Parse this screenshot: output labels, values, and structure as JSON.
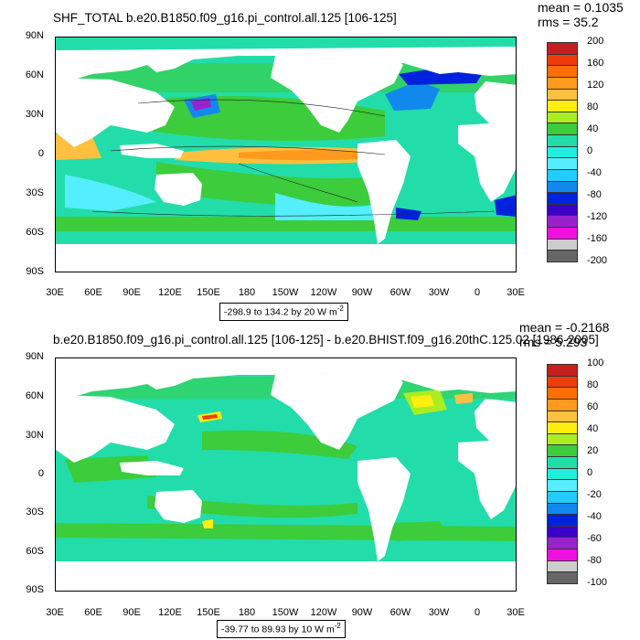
{
  "panels": [
    {
      "title": "SHF_TOTAL b.e20.B1850.f09_g16.pi_control.all.125 [106-125]",
      "mean": "mean = 0.1035",
      "rms": "rms = 35.2",
      "range_label": "-298.9 to 134.2 by 20  W m",
      "units_exp": "-2",
      "colorbar_labels": [
        "200",
        "160",
        "120",
        "80",
        "40",
        "0",
        "-40",
        "-80",
        "-120",
        "-160",
        "-200"
      ],
      "colorbar_colors": [
        "#c81e1e",
        "#f03c0a",
        "#ff6e00",
        "#ff9a1e",
        "#ffc040",
        "#ffee10",
        "#aaee22",
        "#3ccc3c",
        "#22ddaa",
        "#22eedd",
        "#55eeff",
        "#22ccff",
        "#1188ee",
        "#0022dd",
        "#3c00cc",
        "#9922cc",
        "#ee11dd",
        "#cccccc",
        "#666666"
      ]
    },
    {
      "title": "b.e20.B1850.f09_g16.pi_control.all.125 [106-125] - b.e20.BHIST.f09_g16.20thC.125.02 [1986-2005]",
      "mean": "mean = -0.2168",
      "rms": "rms = 5.293",
      "range_label": "-39.77 to 89.93 by 10  W m",
      "units_exp": "-2",
      "colorbar_labels": [
        "100",
        "80",
        "60",
        "40",
        "20",
        "0",
        "-20",
        "-40",
        "-60",
        "-80",
        "-100"
      ],
      "colorbar_colors": [
        "#c81e1e",
        "#f03c0a",
        "#ff6e00",
        "#ff9a1e",
        "#ffc040",
        "#ffee10",
        "#aaee22",
        "#3ccc3c",
        "#22ddaa",
        "#22eedd",
        "#55eeff",
        "#22ccff",
        "#1188ee",
        "#0022dd",
        "#3c00cc",
        "#9922cc",
        "#ee11dd",
        "#cccccc",
        "#666666"
      ]
    }
  ],
  "lat_labels": [
    "90N",
    "60N",
    "30N",
    "0",
    "30S",
    "60S",
    "90S"
  ],
  "lon_labels": [
    "30E",
    "60E",
    "90E",
    "120E",
    "150E",
    "180",
    "150W",
    "120W",
    "90W",
    "60W",
    "30W",
    "0",
    "30E"
  ],
  "colors": {
    "ocean_base": "#22ddaa",
    "green": "#3ccc3c",
    "light_green": "#aaee22",
    "cyan": "#55eeff",
    "yellow": "#ffee10",
    "orange": "#ff9a1e",
    "red": "#f03c0a",
    "blue": "#1188ee",
    "purple": "#3c00cc",
    "land": "#ffffff"
  }
}
